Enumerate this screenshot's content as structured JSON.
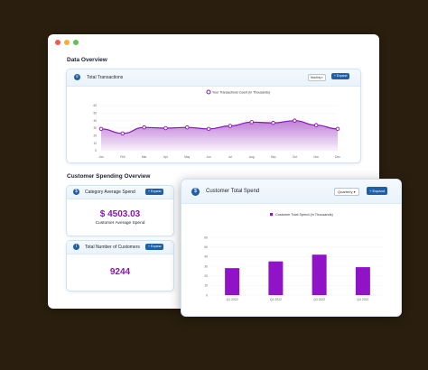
{
  "window": {
    "dots": [
      "#ee5a4e",
      "#f2b233",
      "#5fc254"
    ],
    "data_overview": "Data Overview",
    "spending_overview": "Customer Spending Overview"
  },
  "transactions": {
    "title": "Total Transactions",
    "period": "Monthly",
    "expand": "+ Expand"
  },
  "avg_spend": {
    "title": "Category Average Spend",
    "expand": "+ Expand",
    "value": "$ 4503.03",
    "label": "Customer Average Spend"
  },
  "customers": {
    "title": "Total Number of Customers",
    "expand": "+ Expand",
    "value": "9244"
  },
  "total_spend": {
    "title": "Customer Total Spend",
    "period": "Quarterly",
    "expand": "+ Expand"
  },
  "colors": {
    "accent": "#8b14b8",
    "primary": "#1f5fa6",
    "background": "#2a1f0e"
  },
  "chart_data": [
    {
      "type": "area",
      "legend": "Your Transactions Count (in Thousands)",
      "categories": [
        "Jan",
        "Feb",
        "Mar",
        "Apr",
        "May",
        "Jun",
        "Jul",
        "Aug",
        "Sep",
        "Oct",
        "Nov",
        "Dec"
      ],
      "values": [
        29,
        23,
        31,
        30,
        31,
        29,
        33,
        38,
        37,
        40,
        34,
        29
      ],
      "yticks": [
        0,
        10,
        20,
        30,
        40,
        50,
        60
      ],
      "ylim": [
        0,
        60
      ],
      "color": "#8b14b8"
    },
    {
      "type": "bar",
      "legend": "Customer Total Spend (in Thousands)",
      "categories": [
        "Q1 2022",
        "Q2 2022",
        "Q3 2022",
        "Q4 2022"
      ],
      "values": [
        28,
        35,
        42,
        29
      ],
      "yticks": [
        0,
        10,
        20,
        30,
        40,
        50,
        60
      ],
      "ylim": [
        0,
        60
      ],
      "color": "#9013c7"
    }
  ]
}
